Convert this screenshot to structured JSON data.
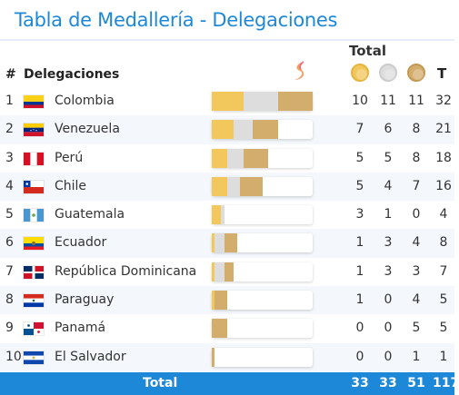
{
  "header": {
    "title": "Tabla de Medallería - Delegaciones",
    "col_rank": "#",
    "col_delegations": "Delegaciones",
    "col_total_group": "Total",
    "col_total": "T",
    "medal_icons": [
      "gold-medal-icon",
      "silver-medal-icon",
      "bronze-medal-icon"
    ]
  },
  "colors": {
    "accent": "#1e88d8",
    "gold": "#f2c75c",
    "silver": "#dddddd",
    "bronze": "#d3ad6c"
  },
  "bar_scale_max": 32,
  "rows": [
    {
      "rank": "1",
      "country": "Colombia",
      "flag": "colombia",
      "gold": 10,
      "silver": 11,
      "bronze": 11,
      "total": 32
    },
    {
      "rank": "2",
      "country": "Venezuela",
      "flag": "venezuela",
      "gold": 7,
      "silver": 6,
      "bronze": 8,
      "total": 21
    },
    {
      "rank": "3",
      "country": "Perú",
      "flag": "peru",
      "gold": 5,
      "silver": 5,
      "bronze": 8,
      "total": 18
    },
    {
      "rank": "4",
      "country": "Chile",
      "flag": "chile",
      "gold": 5,
      "silver": 4,
      "bronze": 7,
      "total": 16
    },
    {
      "rank": "5",
      "country": "Guatemala",
      "flag": "guatemala",
      "gold": 3,
      "silver": 1,
      "bronze": 0,
      "total": 4
    },
    {
      "rank": "6",
      "country": "Ecuador",
      "flag": "ecuador",
      "gold": 1,
      "silver": 3,
      "bronze": 4,
      "total": 8
    },
    {
      "rank": "7",
      "country": "República Dominicana",
      "flag": "dominican-republic",
      "gold": 1,
      "silver": 3,
      "bronze": 3,
      "total": 7
    },
    {
      "rank": "8",
      "country": "Paraguay",
      "flag": "paraguay",
      "gold": 1,
      "silver": 0,
      "bronze": 4,
      "total": 5
    },
    {
      "rank": "9",
      "country": "Panamá",
      "flag": "panama",
      "gold": 0,
      "silver": 0,
      "bronze": 5,
      "total": 5
    },
    {
      "rank": "10",
      "country": "El Salvador",
      "flag": "el-salvador",
      "gold": 0,
      "silver": 0,
      "bronze": 1,
      "total": 1
    }
  ],
  "footer": {
    "label": "Total",
    "gold": "33",
    "silver": "33",
    "bronze": "51",
    "total": "117"
  }
}
